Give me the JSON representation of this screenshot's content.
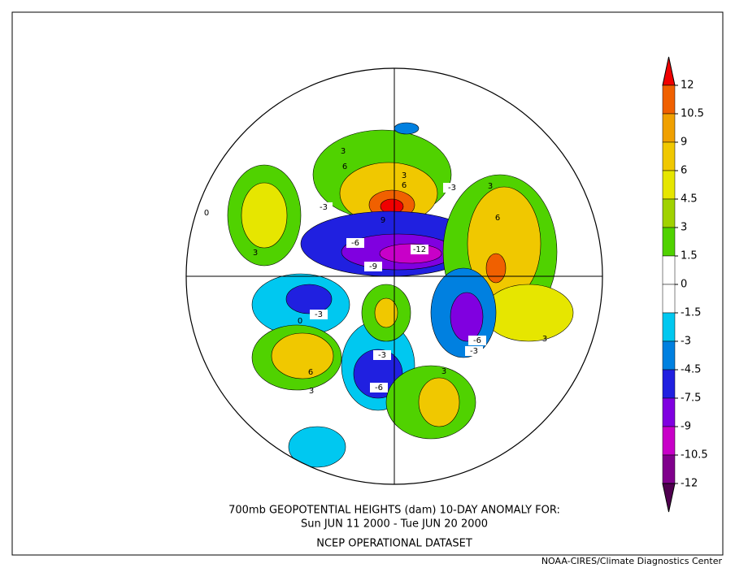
{
  "title": {
    "line1": "700mb GEOPOTENTIAL HEIGHTS (dam)    10-DAY ANOMALY FOR:",
    "line2": "Sun JUN 11 2000 - Tue JUN 20 2000",
    "line3": "NCEP OPERATIONAL DATASET"
  },
  "credit": "NOAA-CIRES/Climate Diagnostics Center",
  "colorbar": {
    "levels": [
      12,
      10.5,
      9,
      6,
      4.5,
      3,
      1.5,
      0,
      -1.5,
      -3,
      -4.5,
      -7.5,
      -9,
      -10.5,
      -12
    ],
    "colors": [
      "#f00000",
      "#f06000",
      "#f0a000",
      "#f0c800",
      "#e6e600",
      "#a0d200",
      "#50d200",
      "#ffffff",
      "#ffffff",
      "#00c8f0",
      "#0080e0",
      "#2020e0",
      "#8000e0",
      "#c800c8",
      "#80008c",
      "#500050"
    ]
  },
  "contour_labels": {
    "boxed": [
      "-3",
      "-6",
      "-9",
      "-12",
      "-3",
      "-6",
      "-3",
      "-3",
      "-6",
      "-3"
    ],
    "plain": [
      "3",
      "6",
      "9",
      "3",
      "6",
      "3",
      "0",
      "3",
      "6",
      "3",
      "6",
      "3",
      "0",
      "3"
    ]
  }
}
